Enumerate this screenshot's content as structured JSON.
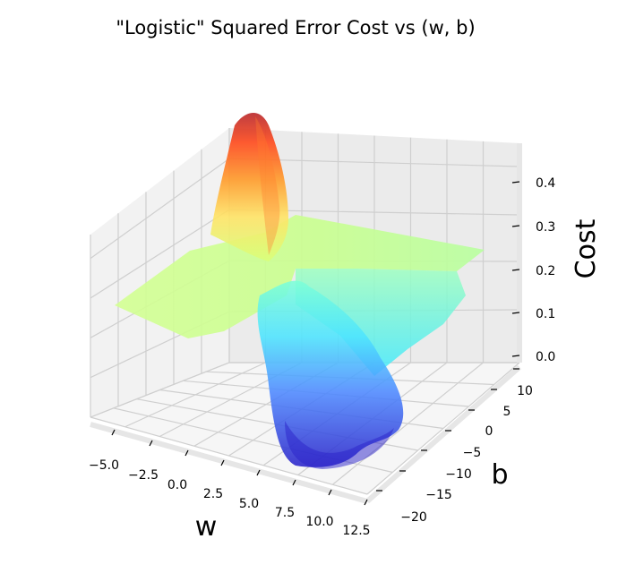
{
  "chart_data": {
    "type": "surface",
    "title": "\"Logistic\" Squared Error Cost vs (w, b)",
    "xlabel": "w",
    "ylabel": "b",
    "zlabel": "Cost",
    "x_ticks": [
      "−5.0",
      "−2.5",
      "0.0",
      "2.5",
      "5.0",
      "7.5",
      "10.0",
      "12.5"
    ],
    "y_ticks": [
      "−20",
      "−15",
      "−10",
      "−5",
      "0",
      "5",
      "10"
    ],
    "z_ticks": [
      "0.0",
      "0.1",
      "0.2",
      "0.3",
      "0.4"
    ],
    "xlim": [
      -6,
      12
    ],
    "ylim": [
      -20,
      13
    ],
    "zlim": [
      0,
      0.46
    ],
    "colormap": "jet",
    "alpha": 0.6,
    "surface_features": [
      {
        "feature": "peak",
        "w": -3.5,
        "b": 12,
        "cost": 0.46
      },
      {
        "feature": "trough",
        "w": 7,
        "b": -12,
        "cost": 0.0
      },
      {
        "feature": "plateau",
        "cost": 0.21
      }
    ]
  }
}
